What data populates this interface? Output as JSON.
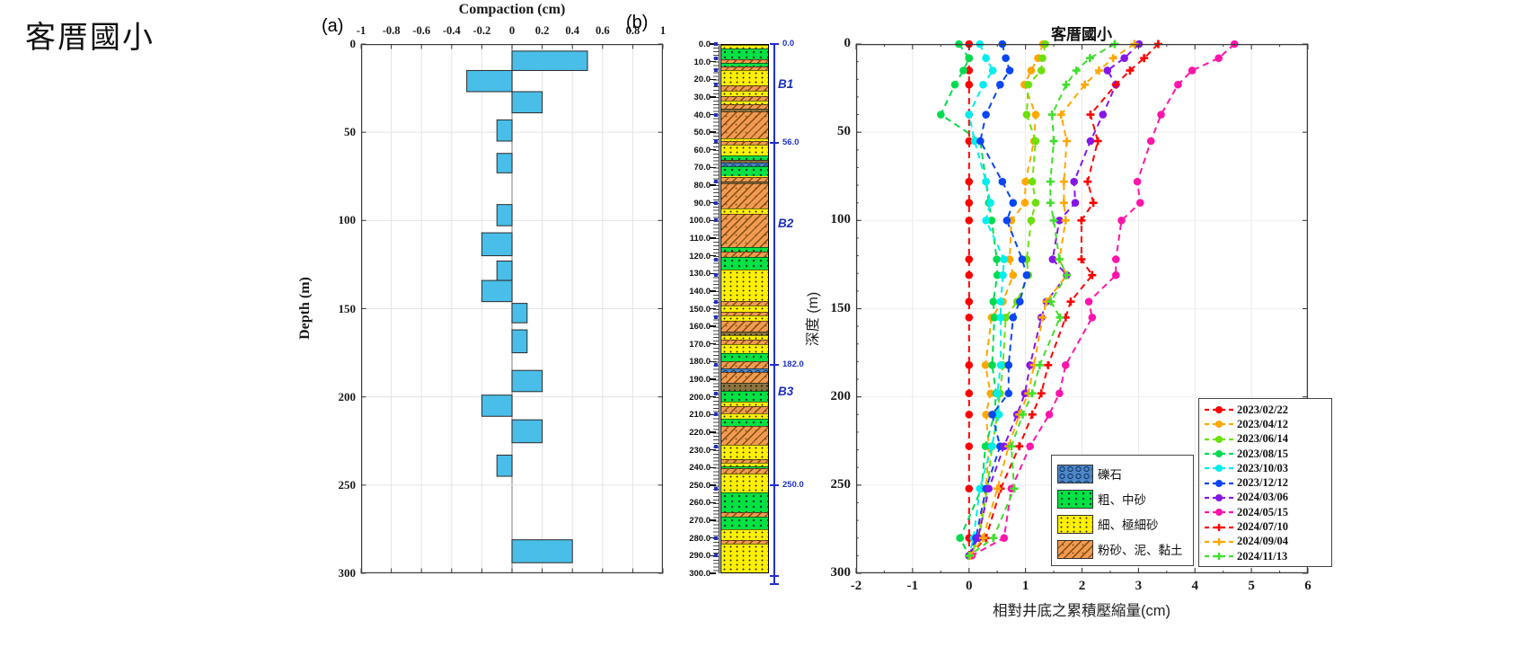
{
  "page_title": "客厝國小",
  "panels": {
    "a": {
      "label": "(a)"
    },
    "b": {
      "label": "(b)",
      "depth_labels": [
        "0.0",
        "10.0",
        "20.0",
        "30.0",
        "40.0",
        "50.0",
        "60.0",
        "70.0",
        "80.0",
        "90.0",
        "100.0",
        "110.0",
        "120.0",
        "130.0",
        "140.0",
        "150.0",
        "160.0",
        "170.0",
        "180.0",
        "190.0",
        "200.0",
        "210.0",
        "220.0",
        "230.0",
        "240.0",
        "250.0",
        "260.0",
        "270.0",
        "280.0",
        "290.0",
        "300.0"
      ],
      "boundary_markers": [
        {
          "depth": 0,
          "label": "0.0"
        },
        {
          "depth": 56,
          "label": "56.0"
        },
        {
          "depth": 182,
          "label": "182.0"
        },
        {
          "depth": 250,
          "label": "250.0"
        }
      ],
      "zone_labels": [
        {
          "depth": 23,
          "label": "B1"
        },
        {
          "depth": 102,
          "label": "B2"
        },
        {
          "depth": 197,
          "label": "B3"
        }
      ],
      "layers": [
        [
          0,
          2,
          "fine"
        ],
        [
          2,
          8,
          "coarse"
        ],
        [
          8,
          10,
          "silt"
        ],
        [
          10,
          12.5,
          "coarse"
        ],
        [
          12.5,
          14.5,
          "silt"
        ],
        [
          14.5,
          23,
          "fine"
        ],
        [
          23,
          26,
          "silt"
        ],
        [
          26,
          29,
          "fine"
        ],
        [
          29,
          31.5,
          "silt"
        ],
        [
          31.5,
          34,
          "fine"
        ],
        [
          34,
          36.5,
          "silt"
        ],
        [
          36.5,
          38,
          "dark"
        ],
        [
          38,
          53,
          "silt"
        ],
        [
          53,
          55,
          "fine"
        ],
        [
          55,
          57,
          "silt"
        ],
        [
          57,
          63,
          "fine"
        ],
        [
          63,
          65.5,
          "coarse"
        ],
        [
          65.5,
          67,
          "dark"
        ],
        [
          67,
          69,
          "gravel"
        ],
        [
          69,
          75,
          "coarse"
        ],
        [
          75,
          78,
          "silt"
        ],
        [
          78,
          79,
          "dark"
        ],
        [
          79,
          93,
          "silt"
        ],
        [
          93,
          96,
          "fine"
        ],
        [
          96,
          115,
          "silt"
        ],
        [
          115,
          118,
          "coarse"
        ],
        [
          118,
          121,
          "silt"
        ],
        [
          121,
          128,
          "coarse"
        ],
        [
          128,
          146,
          "fine"
        ],
        [
          146,
          148.5,
          "silt"
        ],
        [
          148.5,
          152,
          "fine"
        ],
        [
          152,
          154,
          "silt"
        ],
        [
          154,
          157,
          "fine"
        ],
        [
          157,
          163.5,
          "silt"
        ],
        [
          163.5,
          165.5,
          "dark"
        ],
        [
          165.5,
          168,
          "fine"
        ],
        [
          168,
          170.5,
          "silt"
        ],
        [
          170.5,
          175.5,
          "fine"
        ],
        [
          175.5,
          180,
          "coarse"
        ],
        [
          180,
          184.5,
          "silt"
        ],
        [
          184.5,
          186.5,
          "gravel"
        ],
        [
          186.5,
          192.5,
          "silt"
        ],
        [
          192.5,
          197,
          "dark"
        ],
        [
          197,
          203,
          "coarse"
        ],
        [
          203,
          206,
          "fine"
        ],
        [
          206,
          210,
          "silt"
        ],
        [
          210,
          213,
          "fine"
        ],
        [
          213,
          217,
          "coarse"
        ],
        [
          217,
          228,
          "silt"
        ],
        [
          228,
          236,
          "fine"
        ],
        [
          236,
          238,
          "silt"
        ],
        [
          238,
          240,
          "fine"
        ],
        [
          240,
          241,
          "coarse"
        ],
        [
          241,
          244,
          "silt"
        ],
        [
          244,
          255,
          "fine"
        ],
        [
          255,
          266,
          "coarse"
        ],
        [
          266,
          269,
          "silt"
        ],
        [
          269,
          276,
          "coarse"
        ],
        [
          276,
          282,
          "fine"
        ],
        [
          282,
          284,
          "silt"
        ],
        [
          284,
          300,
          "fine"
        ]
      ],
      "lithology_legend": [
        {
          "pattern": "gravel",
          "label": "礫石"
        },
        {
          "pattern": "coarse",
          "label": "粗、中砂"
        },
        {
          "pattern": "fine",
          "label": "細、極細砂"
        },
        {
          "pattern": "silt",
          "label": "粉砂、泥、黏土"
        }
      ]
    }
  },
  "chart_data": [
    {
      "id": "compaction-bar-chart",
      "type": "bar",
      "orientation": "horizontal-bars-vertical-depth",
      "title": "Compaction (cm)",
      "ylabel": "Depth (m)",
      "xlim": [
        -1,
        1
      ],
      "ylim": [
        0,
        300
      ],
      "xticks": [
        -1,
        -0.8,
        -0.6,
        -0.4,
        -0.2,
        0,
        0.2,
        0.4,
        0.6,
        0.8,
        1
      ],
      "yticks": [
        0,
        50,
        100,
        150,
        200,
        250,
        300
      ],
      "bar_color": "#49BEE8",
      "bar_edge_color": "#2B2B2B",
      "bars": [
        {
          "from": 4,
          "to": 15,
          "value": 0.5
        },
        {
          "from": 15,
          "to": 27,
          "value": -0.3
        },
        {
          "from": 27,
          "to": 39,
          "value": 0.2
        },
        {
          "from": 43,
          "to": 55,
          "value": -0.1
        },
        {
          "from": 62,
          "to": 73,
          "value": -0.1
        },
        {
          "from": 91,
          "to": 103,
          "value": -0.1
        },
        {
          "from": 107,
          "to": 120,
          "value": -0.2
        },
        {
          "from": 123,
          "to": 134,
          "value": -0.1
        },
        {
          "from": 134,
          "to": 146,
          "value": -0.2
        },
        {
          "from": 147,
          "to": 158,
          "value": 0.1
        },
        {
          "from": 162,
          "to": 175,
          "value": 0.1
        },
        {
          "from": 185,
          "to": 197,
          "value": 0.2
        },
        {
          "from": 199,
          "to": 211,
          "value": -0.2
        },
        {
          "from": 213,
          "to": 226,
          "value": 0.2
        },
        {
          "from": 233,
          "to": 245,
          "value": -0.1
        },
        {
          "from": 281,
          "to": 294,
          "value": 0.4
        }
      ]
    },
    {
      "id": "cumulative-compression-chart",
      "type": "line",
      "title": "客厝國小",
      "xlabel": "相對井底之累積壓縮量(cm)",
      "ylabel": "深度 (m)",
      "xlim": [
        -2,
        6
      ],
      "ylim": [
        0,
        300
      ],
      "xticks": [
        -2,
        -1,
        0,
        1,
        2,
        3,
        4,
        5,
        6
      ],
      "yticks": [
        0,
        50,
        100,
        150,
        200,
        250,
        300
      ],
      "legend_position": "lower-right",
      "depths": [
        0,
        8,
        15,
        23,
        40,
        55,
        78,
        90,
        100,
        122,
        131,
        146,
        155,
        182,
        198,
        210,
        228,
        252,
        280,
        290
      ],
      "series": [
        {
          "name": "2023/02/22",
          "color": "#FF0000",
          "marker": "circle",
          "values": [
            0,
            0,
            0,
            0,
            0,
            0,
            0,
            0,
            0,
            0,
            0,
            0,
            0,
            0,
            0,
            0,
            0,
            0,
            0,
            0
          ]
        },
        {
          "name": "2023/04/12",
          "color": "#FFA700",
          "marker": "circle",
          "values": [
            1.31,
            1.22,
            1.1,
            0.98,
            1.18,
            1.15,
            1.0,
            0.99,
            0.75,
            0.72,
            0.78,
            0.6,
            0.4,
            0.29,
            0.38,
            0.3,
            0.35,
            0.3,
            0.15,
            0.02
          ]
        },
        {
          "name": "2023/06/14",
          "color": "#6CE00A",
          "marker": "circle",
          "values": [
            1.35,
            1.3,
            1.28,
            1.05,
            1.02,
            1.18,
            1.12,
            1.18,
            1.1,
            1.02,
            1.05,
            0.85,
            0.65,
            0.6,
            0.55,
            0.5,
            0.41,
            0.32,
            0.18,
            0.02
          ]
        },
        {
          "name": "2023/08/15",
          "color": "#00DC50",
          "marker": "circle",
          "values": [
            -0.18,
            0.0,
            -0.1,
            -0.25,
            -0.5,
            0.2,
            0.3,
            0.35,
            0.4,
            0.49,
            0.5,
            0.43,
            0.45,
            0.41,
            0.48,
            0.45,
            0.29,
            0.22,
            -0.16,
            0.0
          ]
        },
        {
          "name": "2023/10/03",
          "color": "#00EEEE",
          "marker": "circle",
          "values": [
            0.19,
            0.3,
            0.42,
            0.25,
            0.0,
            0.1,
            0.3,
            0.38,
            0.3,
            0.62,
            0.6,
            0.56,
            0.56,
            0.56,
            0.5,
            0.53,
            0.4,
            0.19,
            0.08,
            0.0
          ]
        },
        {
          "name": "2023/12/12",
          "color": "#0A46F5",
          "marker": "circle",
          "values": [
            0.59,
            0.65,
            0.72,
            0.55,
            0.3,
            0.2,
            0.59,
            0.78,
            0.67,
            0.94,
            1.02,
            0.9,
            0.78,
            0.7,
            0.7,
            0.41,
            0.55,
            0.3,
            0.12,
            0.0
          ]
        },
        {
          "name": "2024/03/06",
          "color": "#8616E8",
          "marker": "circle",
          "values": [
            3.01,
            2.75,
            2.45,
            2.6,
            2.37,
            2.15,
            1.86,
            1.88,
            1.6,
            1.48,
            1.73,
            1.37,
            1.28,
            1.08,
            0.99,
            0.85,
            0.62,
            0.35,
            0.16,
            0.0
          ]
        },
        {
          "name": "2024/05/15",
          "color": "#FF14AC",
          "marker": "circle",
          "values": [
            4.7,
            4.42,
            3.95,
            3.7,
            3.4,
            3.22,
            2.98,
            3.03,
            2.7,
            2.6,
            2.6,
            2.12,
            2.18,
            1.71,
            1.6,
            1.42,
            1.08,
            0.75,
            0.62,
            0.05
          ]
        },
        {
          "name": "2024/07/10",
          "color": "#FF0000",
          "marker": "plus",
          "values": [
            3.35,
            3.1,
            2.85,
            2.6,
            2.15,
            2.28,
            2.1,
            2.2,
            1.99,
            1.99,
            2.18,
            1.8,
            1.71,
            1.4,
            1.28,
            1.12,
            0.89,
            0.56,
            0.3,
            0.0
          ]
        },
        {
          "name": "2024/09/04",
          "color": "#FFA700",
          "marker": "plus",
          "values": [
            2.93,
            2.55,
            2.3,
            2.05,
            1.63,
            1.73,
            1.68,
            1.68,
            1.71,
            1.6,
            1.73,
            1.37,
            1.3,
            1.15,
            1.05,
            0.89,
            0.7,
            0.5,
            0.25,
            0.02
          ]
        },
        {
          "name": "2024/11/13",
          "color": "#3FE02C",
          "marker": "plus",
          "values": [
            2.58,
            2.14,
            1.9,
            1.72,
            1.47,
            1.5,
            1.44,
            1.44,
            1.5,
            1.6,
            1.73,
            1.45,
            1.61,
            1.25,
            1.12,
            0.95,
            0.75,
            0.8,
            0.43,
            0.0
          ]
        }
      ]
    }
  ],
  "colors": {
    "grid": "#E3E3E3",
    "zero_line": "#9A9A9A",
    "spine": "#3C3C3C",
    "annotation_blue": "#2030C8"
  }
}
